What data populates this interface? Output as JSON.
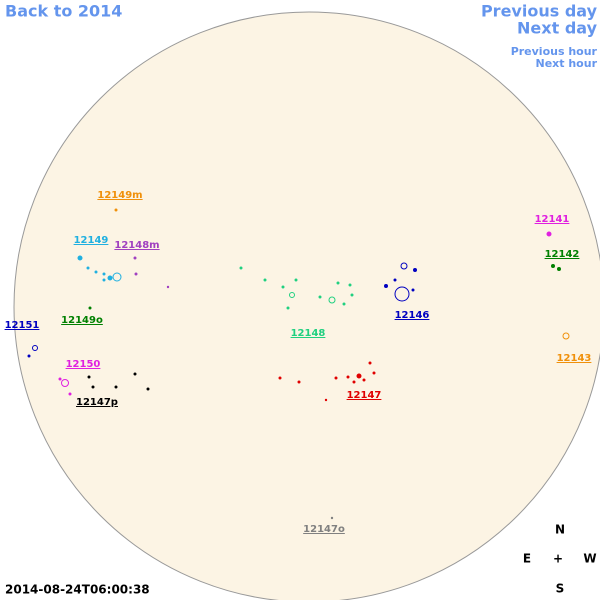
{
  "nav": {
    "back": "Back to 2014",
    "previous_day": "Previous day",
    "next_day": "Next day",
    "previous_hour": "Previous hour",
    "next_hour": "Next hour"
  },
  "timestamp": "2014-08-24T06:00:38",
  "compass": {
    "north": "N",
    "east": "E",
    "center": "+",
    "west": "W",
    "south": "S"
  },
  "regions": [
    {
      "label": "12149m",
      "color": "#f0900a"
    },
    {
      "label": "12149",
      "color": "#20b0e0"
    },
    {
      "label": "12148m",
      "color": "#a040c0"
    },
    {
      "label": "12151",
      "color": "#0000c0"
    },
    {
      "label": "12149o",
      "color": "#008000"
    },
    {
      "label": "12150",
      "color": "#e020e0"
    },
    {
      "label": "12147p",
      "color": "#000000"
    },
    {
      "label": "12148",
      "color": "#20d080"
    },
    {
      "label": "12146",
      "color": "#0000c0"
    },
    {
      "label": "12147",
      "color": "#e00000"
    },
    {
      "label": "12147o",
      "color": "#808080"
    },
    {
      "label": "12141",
      "color": "#e020e0"
    },
    {
      "label": "12142",
      "color": "#008000"
    },
    {
      "label": "12143",
      "color": "#f0900a"
    }
  ]
}
